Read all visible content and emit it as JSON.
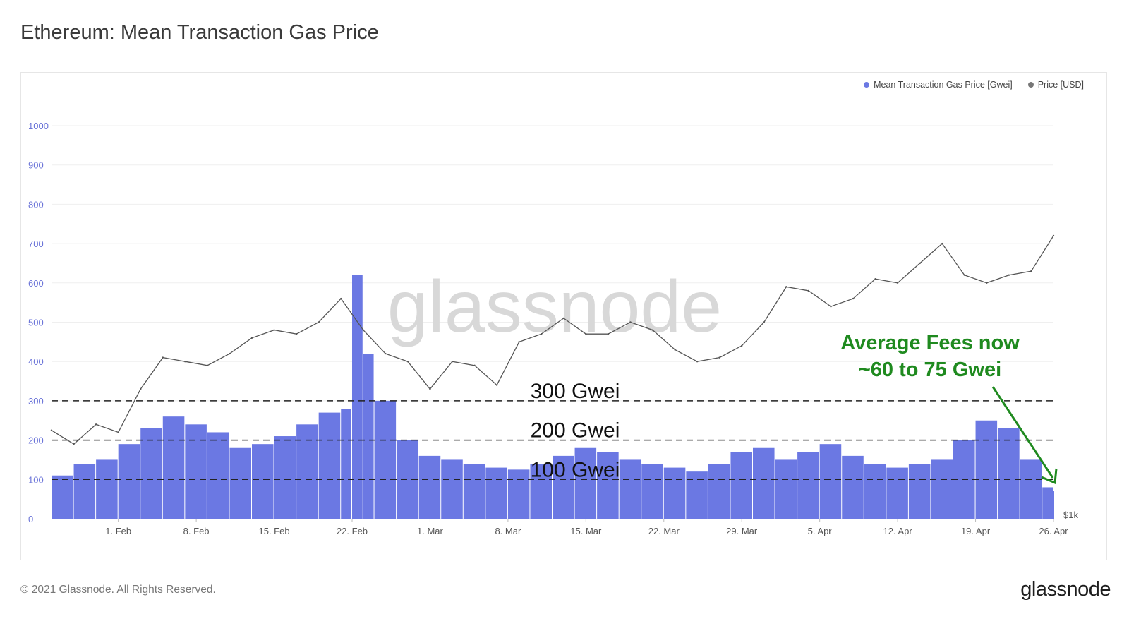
{
  "title": "Ethereum: Mean Transaction Gas Price",
  "legend": {
    "gas_label": "Mean Transaction Gas Price [Gwei]",
    "price_label": "Price [USD]"
  },
  "colors": {
    "gas": "#6b78e3",
    "price": "#555555",
    "annotation": "#1f8a1f"
  },
  "footer": {
    "copyright": "© 2021 Glassnode. All Rights Reserved.",
    "brand": "glassnode"
  },
  "watermark": "glassnode",
  "right_axis_label": "$1k",
  "chart_data": {
    "type": "bar",
    "y_ticks": [
      0,
      100,
      200,
      300,
      400,
      500,
      600,
      700,
      800,
      900,
      1000
    ],
    "ylim": [
      0,
      1000
    ],
    "x_ticks": [
      "1. Feb",
      "8. Feb",
      "15. Feb",
      "22. Feb",
      "1. Mar",
      "8. Mar",
      "15. Mar",
      "22. Mar",
      "29. Mar",
      "5. Apr",
      "12. Apr",
      "19. Apr",
      "26. Apr"
    ],
    "x_start": "2021-01-26",
    "x_end": "2021-04-26",
    "grid": true,
    "legend_position": "top-right",
    "reference_lines": [
      {
        "value": 300,
        "label": "300 Gwei"
      },
      {
        "value": 200,
        "label": "200 Gwei"
      },
      {
        "value": 100,
        "label": "100 Gwei"
      }
    ],
    "annotation": [
      "Average Fees now",
      "~60 to 75 Gwei"
    ],
    "series": [
      {
        "name": "Mean Transaction Gas Price [Gwei]",
        "type": "bar",
        "x": [
          "2021-01-26",
          "2021-01-28",
          "2021-01-30",
          "2021-02-01",
          "2021-02-03",
          "2021-02-05",
          "2021-02-07",
          "2021-02-09",
          "2021-02-11",
          "2021-02-13",
          "2021-02-15",
          "2021-02-17",
          "2021-02-19",
          "2021-02-21",
          "2021-02-22",
          "2021-02-23",
          "2021-02-24",
          "2021-02-26",
          "2021-02-28",
          "2021-03-02",
          "2021-03-04",
          "2021-03-06",
          "2021-03-08",
          "2021-03-10",
          "2021-03-12",
          "2021-03-14",
          "2021-03-16",
          "2021-03-18",
          "2021-03-20",
          "2021-03-22",
          "2021-03-24",
          "2021-03-26",
          "2021-03-28",
          "2021-03-30",
          "2021-04-01",
          "2021-04-03",
          "2021-04-05",
          "2021-04-07",
          "2021-04-09",
          "2021-04-11",
          "2021-04-13",
          "2021-04-15",
          "2021-04-17",
          "2021-04-19",
          "2021-04-21",
          "2021-04-23",
          "2021-04-25",
          "2021-04-26"
        ],
        "values": [
          110,
          140,
          150,
          190,
          230,
          260,
          240,
          220,
          180,
          190,
          210,
          240,
          270,
          280,
          620,
          420,
          300,
          200,
          160,
          150,
          140,
          130,
          125,
          140,
          160,
          180,
          170,
          150,
          140,
          130,
          120,
          140,
          170,
          180,
          150,
          170,
          190,
          160,
          140,
          130,
          140,
          150,
          200,
          250,
          230,
          150,
          80,
          70
        ]
      },
      {
        "name": "Price [USD]",
        "type": "line",
        "x": [
          "2021-01-26",
          "2021-01-28",
          "2021-01-30",
          "2021-02-01",
          "2021-02-03",
          "2021-02-05",
          "2021-02-07",
          "2021-02-09",
          "2021-02-11",
          "2021-02-13",
          "2021-02-15",
          "2021-02-17",
          "2021-02-19",
          "2021-02-21",
          "2021-02-23",
          "2021-02-25",
          "2021-02-27",
          "2021-03-01",
          "2021-03-03",
          "2021-03-05",
          "2021-03-07",
          "2021-03-09",
          "2021-03-11",
          "2021-03-13",
          "2021-03-15",
          "2021-03-17",
          "2021-03-19",
          "2021-03-21",
          "2021-03-23",
          "2021-03-25",
          "2021-03-27",
          "2021-03-29",
          "2021-03-31",
          "2021-04-02",
          "2021-04-04",
          "2021-04-06",
          "2021-04-08",
          "2021-04-10",
          "2021-04-12",
          "2021-04-14",
          "2021-04-16",
          "2021-04-18",
          "2021-04-20",
          "2021-04-22",
          "2021-04-24",
          "2021-04-26"
        ],
        "values": [
          225,
          190,
          240,
          220,
          330,
          410,
          400,
          390,
          420,
          460,
          480,
          470,
          500,
          560,
          480,
          420,
          400,
          330,
          400,
          390,
          340,
          450,
          470,
          510,
          470,
          470,
          500,
          480,
          430,
          400,
          410,
          440,
          500,
          590,
          580,
          540,
          560,
          610,
          600,
          650,
          700,
          620,
          600,
          620,
          630,
          720
        ]
      }
    ]
  }
}
